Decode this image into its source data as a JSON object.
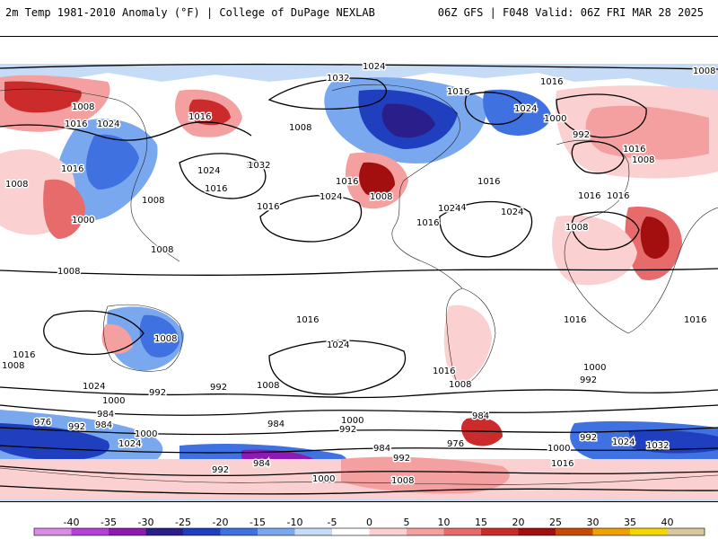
{
  "header": {
    "title_left": "2m Temp 1981-2010 Anomaly (°F) | College of DuPage NEXLAB",
    "title_right": "06Z GFS | F048 Valid: 06Z FRI MAR 28 2025"
  },
  "colorbar": {
    "ticks": [
      "-40",
      "-35",
      "-30",
      "-25",
      "-20",
      "-15",
      "-10",
      "-5",
      "0",
      "5",
      "10",
      "15",
      "20",
      "25",
      "30",
      "35",
      "40"
    ],
    "colors": [
      "#d98ce6",
      "#b340d9",
      "#8c1ab3",
      "#2a1f8a",
      "#1f3fbf",
      "#3f72e0",
      "#7aa8ef",
      "#c6dcf6",
      "#ffffff",
      "#fbd0d0",
      "#f4a0a0",
      "#e86b6b",
      "#cc2b2b",
      "#a30f0f",
      "#c64b00",
      "#f0a000",
      "#f5d600",
      "#d8c8a0"
    ]
  },
  "map": {
    "pressure_labels": [
      "1024",
      "1032",
      "1008",
      "1016",
      "1024",
      "1016",
      "1000",
      "992",
      "1008",
      "1024",
      "1016",
      "1024",
      "1016",
      "1008",
      "1016",
      "1024",
      "1008",
      "1016",
      "1000",
      "1008",
      "1008",
      "1016",
      "1024",
      "1032",
      "1016",
      "1024",
      "1016",
      "1008",
      "1016",
      "1016",
      "1024",
      "1016",
      "1024",
      "1016",
      "1008",
      "1016",
      "1008",
      "1016",
      "1008",
      "1016",
      "1008",
      "1000",
      "992",
      "1024",
      "1016",
      "1008",
      "1024",
      "1000",
      "992",
      "984",
      "976",
      "992",
      "984",
      "1000",
      "1024",
      "984",
      "992",
      "984",
      "992",
      "1000",
      "992",
      "1008",
      "1000",
      "984",
      "976",
      "992",
      "1016",
      "1000",
      "1024",
      "1032",
      "1016",
      "1008",
      "992",
      "1008",
      "984"
    ],
    "colors": {
      "cold_light": "#c6dcf6",
      "cold_mid": "#7aa8ef",
      "cold_deep": "#3f72e0",
      "cold_darker": "#1f3fbf",
      "cold_navy": "#2a1f8a",
      "cold_violet": "#8c1ab3",
      "warm_light": "#fbd0d0",
      "warm_mid": "#f4a0a0",
      "warm_deep": "#e86b6b",
      "warm_red": "#cc2b2b",
      "warm_dark": "#a30f0f"
    }
  }
}
